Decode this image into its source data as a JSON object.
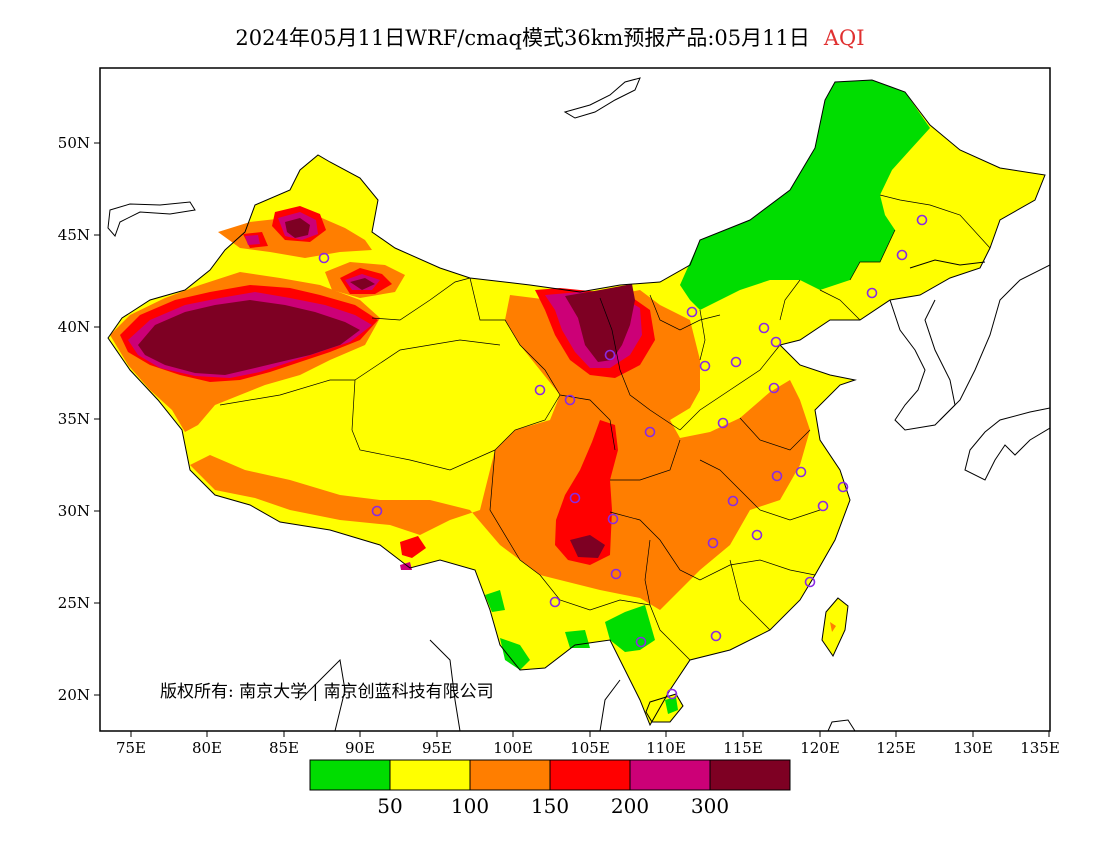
{
  "title": {
    "main": "2024年05月11日WRF/cmaq模式36km预报产品:05月11日",
    "variable": "AQI"
  },
  "map": {
    "lat_ticks": [
      "50N",
      "45N",
      "40N",
      "35N",
      "30N",
      "25N",
      "20N"
    ],
    "lon_ticks": [
      "75E",
      "80E",
      "85E",
      "90E",
      "95E",
      "100E",
      "105E",
      "110E",
      "115E",
      "120E",
      "125E",
      "130E",
      "135E"
    ],
    "copyright": "版权所有: 南京大学 | 南京创蓝科技有限公司"
  },
  "legend": {
    "colors": [
      "#00dd00",
      "#ffff00",
      "#ff7e00",
      "#ff0000",
      "#cc0077",
      "#7e0023"
    ],
    "labels": [
      "50",
      "100",
      "150",
      "200",
      "300"
    ]
  }
}
